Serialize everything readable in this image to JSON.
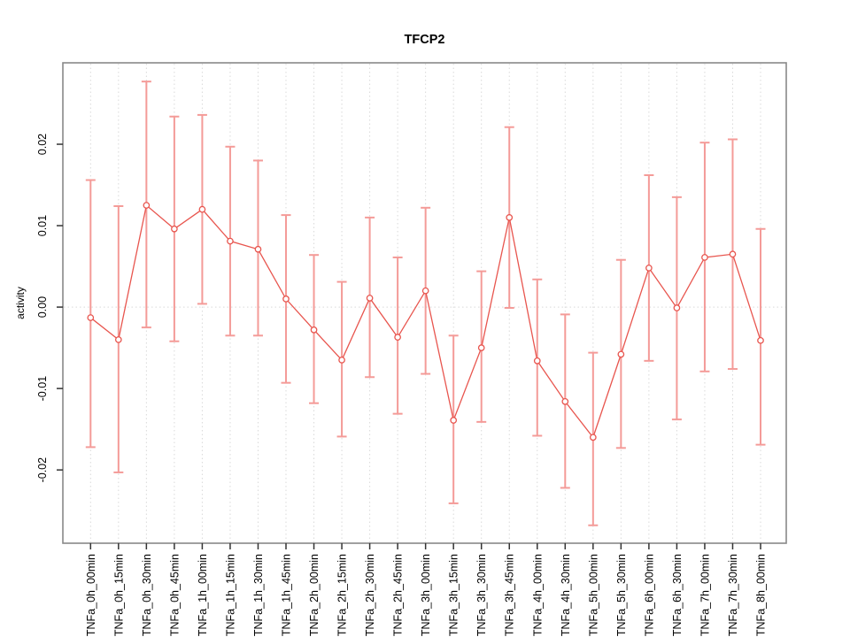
{
  "chart_data": {
    "type": "scatter",
    "title": "TFCP2",
    "xlabel": "",
    "ylabel": "activity",
    "categories": [
      "TNFa_0h_00min",
      "TNFa_0h_15min",
      "TNFa_0h_30min",
      "TNFa_0h_45min",
      "TNFa_1h_00min",
      "TNFa_1h_15min",
      "TNFa_1h_30min",
      "TNFa_1h_45min",
      "TNFa_2h_00min",
      "TNFa_2h_15min",
      "TNFa_2h_30min",
      "TNFa_2h_45min",
      "TNFa_3h_00min",
      "TNFa_3h_15min",
      "TNFa_3h_30min",
      "TNFa_3h_45min",
      "TNFa_4h_00min",
      "TNFa_4h_30min",
      "TNFa_5h_00min",
      "TNFa_5h_30min",
      "TNFa_6h_00min",
      "TNFa_6h_30min",
      "TNFa_7h_00min",
      "TNFa_7h_30min",
      "TNFa_8h_00min"
    ],
    "series": [
      {
        "name": "activity",
        "values": [
          -0.0013,
          -0.004,
          0.0125,
          0.0096,
          0.012,
          0.0081,
          0.0071,
          0.001,
          -0.0028,
          -0.0065,
          0.0011,
          -0.0037,
          0.002,
          -0.0139,
          -0.005,
          0.011,
          -0.0066,
          -0.0116,
          -0.016,
          -0.0058,
          0.0048,
          -0.0001,
          0.0061,
          0.0065,
          -0.0041
        ],
        "upper": [
          0.0156,
          0.0124,
          0.0277,
          0.0234,
          0.0236,
          0.0197,
          0.018,
          0.0113,
          0.0064,
          0.0031,
          0.011,
          0.0061,
          0.0122,
          -0.0035,
          0.0044,
          0.0221,
          0.0034,
          -0.0009,
          -0.0056,
          0.0058,
          0.0162,
          0.0135,
          0.0202,
          0.0206,
          0.0096
        ],
        "lower": [
          -0.0172,
          -0.0203,
          -0.0025,
          -0.0042,
          0.0004,
          -0.0035,
          -0.0035,
          -0.0093,
          -0.0118,
          -0.0159,
          -0.0086,
          -0.0131,
          -0.0082,
          -0.0241,
          -0.0141,
          -0.0001,
          -0.0158,
          -0.0222,
          -0.0268,
          -0.0173,
          -0.0066,
          -0.0138,
          -0.0079,
          -0.0076,
          -0.0169
        ]
      }
    ],
    "yticks": [
      -0.02,
      -0.01,
      0.0,
      0.01,
      0.02
    ],
    "ytick_labels": [
      "-0.02",
      "-0.01",
      "0.00",
      "0.01",
      "0.02"
    ],
    "ylim": [
      -0.029,
      0.03
    ],
    "grid": "vertical dotted gridline per category plus dotted horizontal line at 0",
    "legend": "none",
    "point_style": "open circle",
    "colors": {
      "line": "#e8554e",
      "error_bar": "#f49b98",
      "grid": "#d9d9d9",
      "box": "#888888",
      "tick": "#333333",
      "text": "#000000",
      "background": "#ffffff"
    }
  }
}
